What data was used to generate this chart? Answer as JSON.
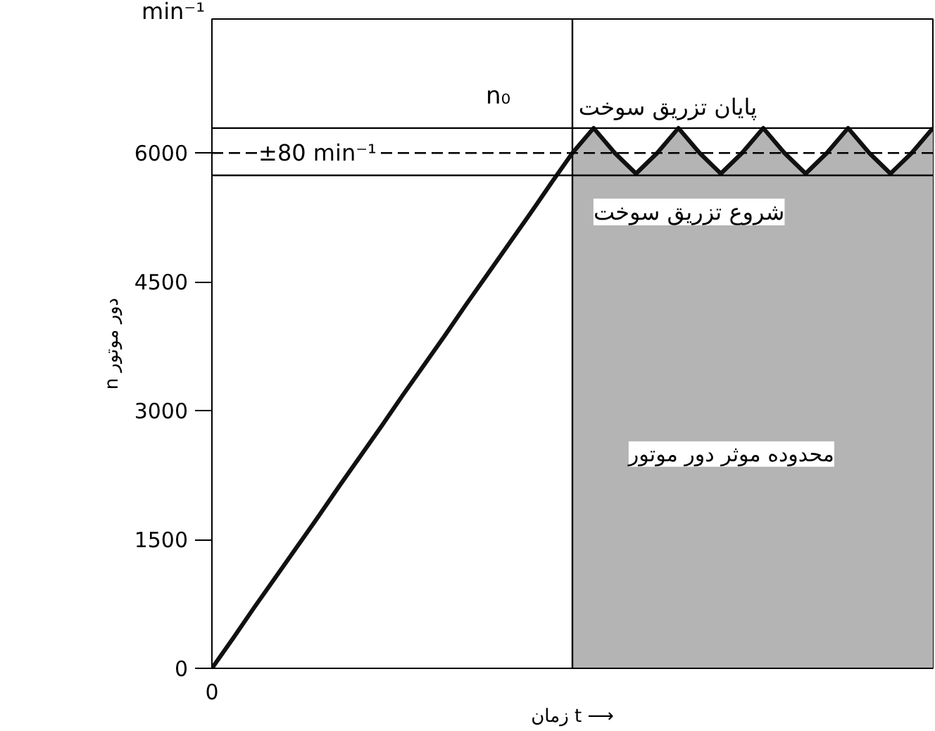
{
  "chart_data": {
    "type": "line",
    "xlabel": "زمان t ⟶",
    "ylabel": "n دور موتور",
    "categories": [
      "0",
      null,
      null,
      null,
      null,
      null,
      null,
      null,
      null,
      null,
      null,
      null,
      null,
      null,
      null,
      null,
      null,
      null,
      null,
      null,
      null,
      null,
      null,
      null,
      null,
      null,
      null,
      null,
      null,
      null,
      null,
      null,
      null,
      null,
      null
    ],
    "ylim": [
      0,
      7560
    ],
    "yticks": [
      0,
      1500,
      3000,
      4500,
      6000
    ],
    "grid": false,
    "series": [
      {
        "type": "area",
        "color": "#b4b4b4",
        "values": [
          null,
          null,
          null,
          null,
          null,
          null,
          null,
          null,
          null,
          null,
          null,
          null,
          null,
          null,
          null,
          null,
          null,
          6000,
          6290,
          6000,
          5760,
          6000,
          6290,
          6000,
          5760,
          6000,
          6290,
          6000,
          5760,
          6000,
          6290,
          6000,
          5760,
          6000,
          6290
        ]
      },
      {
        "color": "#111111",
        "values": [
          0,
          350,
          710,
          1060,
          1410,
          1760,
          2120,
          2470,
          2820,
          3180,
          3530,
          3880,
          4240,
          4590,
          4940,
          5290,
          5650,
          6000,
          6290,
          6000,
          5760,
          6000,
          6290,
          6000,
          5760,
          6000,
          6290,
          6000,
          5760,
          6000,
          6290,
          6000,
          5760,
          6000,
          6290
        ]
      }
    ],
    "ref_lines": [
      {
        "axis": "y",
        "value": 6290
      },
      {
        "axis": "y",
        "value": 5740
      },
      {
        "axis": "y",
        "value": 6000,
        "line_style": "dashed"
      }
    ],
    "annotations": [
      "min⁻¹",
      {
        "text": "n₀",
        "y": 6000
      },
      "±80 min⁻¹",
      {
        "text": "پایان تزریق سوخت",
        "y": 6290
      },
      {
        "text": "شروع تزریق سوخت",
        "y": 5740
      },
      "محدوده موثر دور موتور"
    ]
  }
}
